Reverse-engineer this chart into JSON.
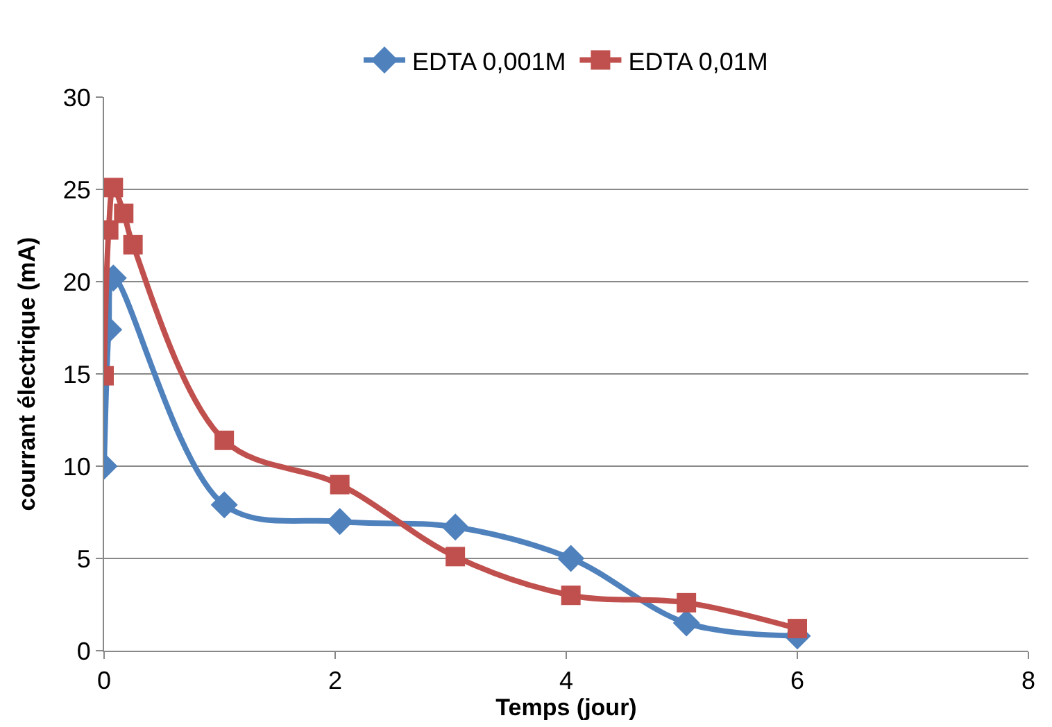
{
  "chart_data": {
    "type": "line",
    "xlabel": "Temps (jour)",
    "ylabel": "courrant électrique (mA)",
    "xlim": [
      0,
      8
    ],
    "xticks": [
      0,
      2,
      4,
      6,
      8
    ],
    "ylim": [
      0,
      30
    ],
    "yticks": [
      0,
      5,
      10,
      15,
      20,
      25,
      30
    ],
    "grid": "y",
    "legend": "top",
    "series": [
      {
        "name": "EDTA 0,001M",
        "color": "#4f81bd",
        "marker": "diamond",
        "x": [
          0,
          0.04,
          0.08,
          0.17,
          0.25,
          1.04,
          2.04,
          3.04,
          4.04,
          5.04,
          6.0
        ],
        "values": [
          10,
          17.4,
          20.2,
          null,
          null,
          7.9,
          7.0,
          6.7,
          5.0,
          1.5,
          0.8
        ]
      },
      {
        "name": "EDTA 0,01M",
        "color": "#c0504d",
        "marker": "square",
        "x": [
          0,
          0.04,
          0.08,
          0.17,
          0.25,
          1.04,
          2.04,
          3.04,
          4.04,
          5.04,
          6.0
        ],
        "values": [
          14.9,
          22.8,
          25.1,
          23.7,
          22.0,
          11.4,
          9.0,
          5.1,
          3.0,
          2.6,
          1.2
        ]
      }
    ]
  }
}
